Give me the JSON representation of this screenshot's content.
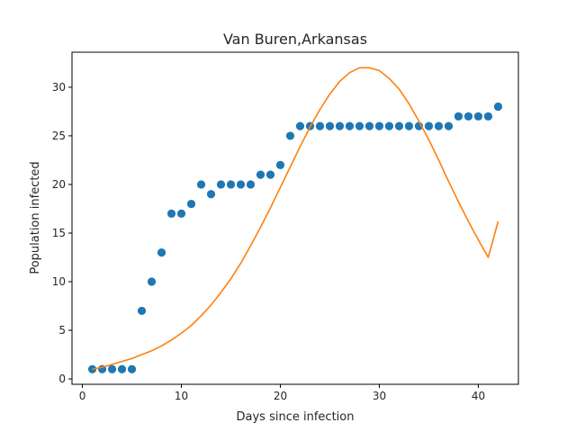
{
  "chart_data": {
    "type": "scatter",
    "title": "Van Buren,Arkansas",
    "xlabel": "Days since infection",
    "ylabel": "Population infected",
    "xlim": [
      -1.05,
      44.05
    ],
    "ylim": [
      -0.55,
      33.6
    ],
    "xticks": [
      0,
      10,
      20,
      30,
      40
    ],
    "yticks": [
      0,
      5,
      10,
      15,
      20,
      25,
      30
    ],
    "grid": false,
    "series": [
      {
        "kind": "scatter",
        "color": "#1f77b4",
        "x": [
          1,
          2,
          3,
          4,
          5,
          6,
          7,
          8,
          9,
          10,
          11,
          12,
          13,
          14,
          15,
          16,
          17,
          18,
          19,
          20,
          21,
          22,
          23,
          24,
          25,
          26,
          27,
          28,
          29,
          30,
          31,
          32,
          33,
          34,
          35,
          36,
          37,
          38,
          39,
          40,
          41,
          42
        ],
        "y": [
          1,
          1,
          1,
          1,
          1,
          7,
          10,
          13,
          17,
          17,
          18,
          20,
          19,
          20,
          20,
          20,
          20,
          21,
          21,
          22,
          25,
          26,
          26,
          26,
          26,
          26,
          26,
          26,
          26,
          26,
          26,
          26,
          26,
          26,
          26,
          26,
          26,
          27,
          27,
          27,
          27,
          28
        ]
      },
      {
        "kind": "line",
        "color": "#ff7f0e",
        "x": [
          1,
          2,
          3,
          4,
          5,
          6,
          7,
          8,
          9,
          10,
          11,
          12,
          13,
          14,
          15,
          16,
          17,
          18,
          19,
          20,
          21,
          22,
          23,
          24,
          25,
          26,
          27,
          28,
          29,
          30,
          31,
          32,
          33,
          34,
          35,
          36,
          37,
          38,
          39,
          40,
          41,
          42
        ],
        "y": [
          1.0,
          1.2,
          1.5,
          1.8,
          2.1,
          2.5,
          2.9,
          3.4,
          4.0,
          4.7,
          5.5,
          6.5,
          7.6,
          8.9,
          10.3,
          11.9,
          13.7,
          15.6,
          17.6,
          19.7,
          21.8,
          23.9,
          25.9,
          27.7,
          29.3,
          30.6,
          31.5,
          32.0,
          32.0,
          31.7,
          30.9,
          29.8,
          28.3,
          26.5,
          24.6,
          22.5,
          20.3,
          18.2,
          16.2,
          14.3,
          12.5,
          16.2
        ]
      }
    ]
  }
}
